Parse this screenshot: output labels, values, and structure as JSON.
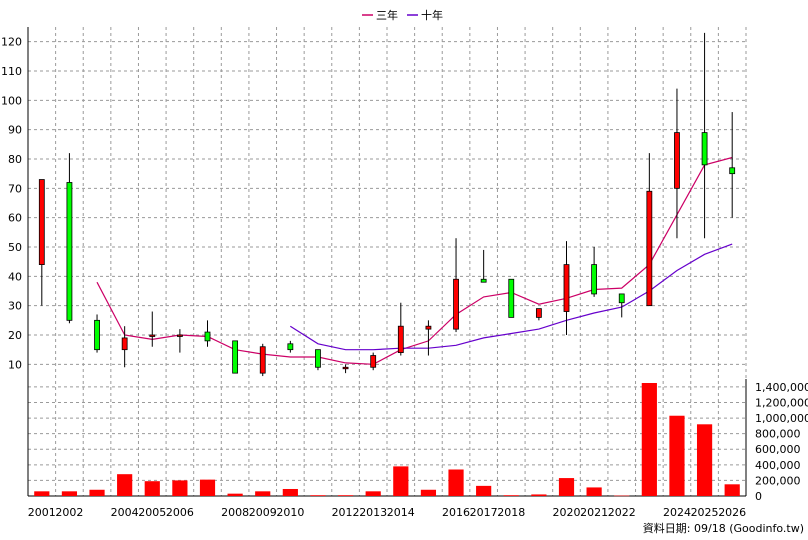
{
  "chart_data": {
    "type": "candlestick",
    "legend": [
      {
        "name": "三年",
        "color": "#cc0066"
      },
      {
        "name": "十年",
        "color": "#6600cc"
      }
    ],
    "price_yticks": [
      10,
      20,
      30,
      40,
      50,
      60,
      70,
      80,
      90,
      100,
      110,
      120
    ],
    "price_ylim": [
      5,
      125
    ],
    "volume_yticks": [
      0,
      200000,
      400000,
      600000,
      800000,
      1000000,
      1200000,
      1400000
    ],
    "volume_ytick_labels": [
      "0",
      "200,000",
      "400,000",
      "600,000",
      "800,000",
      "1,000,000",
      "1,200,000",
      "1,400,000"
    ],
    "volume_ylim": [
      0,
      1450000
    ],
    "x_tick_labels": [
      "2001",
      "2002",
      "",
      "2004",
      "2005",
      "2006",
      "",
      "2008",
      "2009",
      "2010",
      "",
      "2012",
      "2013",
      "2014",
      "",
      "2016",
      "2017",
      "2018",
      "",
      "2020",
      "2021",
      "2022",
      "",
      "2024",
      "2025",
      "2026"
    ],
    "candles": [
      {
        "o": 44,
        "h": 73,
        "l": 30,
        "c": 73
      },
      {
        "o": 72,
        "h": 82,
        "l": 24,
        "c": 25
      },
      {
        "o": 25,
        "h": 27,
        "l": 14,
        "c": 15
      },
      {
        "o": 15,
        "h": 23,
        "l": 9,
        "c": 19
      },
      {
        "o": 20,
        "h": 28,
        "l": 16,
        "c": 20
      },
      {
        "o": 20,
        "h": 22,
        "l": 14,
        "c": 20
      },
      {
        "o": 21,
        "h": 25,
        "l": 16,
        "c": 18
      },
      {
        "o": 18,
        "h": 18,
        "l": 7,
        "c": 7
      },
      {
        "o": 7,
        "h": 17,
        "l": 6,
        "c": 16
      },
      {
        "o": 17,
        "h": 18,
        "l": 14,
        "c": 15
      },
      {
        "o": 15,
        "h": 15,
        "l": 8,
        "c": 9
      },
      {
        "o": 9,
        "h": 10,
        "l": 7,
        "c": 9
      },
      {
        "o": 9,
        "h": 14,
        "l": 8,
        "c": 13
      },
      {
        "o": 14,
        "h": 31,
        "l": 13,
        "c": 23
      },
      {
        "o": 22,
        "h": 25,
        "l": 13,
        "c": 23
      },
      {
        "o": 22,
        "h": 53,
        "l": 21,
        "c": 39
      },
      {
        "o": 39,
        "h": 49,
        "l": 38,
        "c": 38
      },
      {
        "o": 39,
        "h": 39,
        "l": 26,
        "c": 26
      },
      {
        "o": 26,
        "h": 29,
        "l": 25,
        "c": 29
      },
      {
        "o": 28,
        "h": 52,
        "l": 20,
        "c": 44
      },
      {
        "o": 44,
        "h": 50,
        "l": 33,
        "c": 34
      },
      {
        "o": 34,
        "h": 34,
        "l": 26,
        "c": 31
      },
      {
        "o": 30,
        "h": 82,
        "l": 30,
        "c": 69
      },
      {
        "o": 70,
        "h": 104,
        "l": 53,
        "c": 89
      },
      {
        "o": 89,
        "h": 123,
        "l": 53,
        "c": 78
      },
      {
        "o": 77,
        "h": 96,
        "l": 60,
        "c": 75
      }
    ],
    "ma_3y": [
      null,
      null,
      38,
      20,
      18.5,
      20,
      19.5,
      15,
      13.5,
      12.5,
      12.5,
      10.5,
      10,
      15,
      18,
      27,
      33,
      34.5,
      30.5,
      32.5,
      35.5,
      36,
      44,
      61,
      78,
      80.5
    ],
    "ma_10y": [
      null,
      null,
      null,
      null,
      null,
      null,
      null,
      null,
      null,
      23,
      17,
      15,
      15,
      15.5,
      15.5,
      16.5,
      19,
      20.5,
      22,
      25,
      27.5,
      29.5,
      35,
      42,
      47.5,
      51
    ],
    "volume": [
      60000,
      60000,
      80000,
      280000,
      190000,
      200000,
      210000,
      30000,
      60000,
      90000,
      10000,
      10000,
      60000,
      380000,
      80000,
      340000,
      130000,
      10000,
      20000,
      230000,
      110000,
      5000,
      1450000,
      1030000,
      920000,
      150000
    ],
    "footer": "資料日期: 09/18 (Goodinfo.tw)"
  }
}
